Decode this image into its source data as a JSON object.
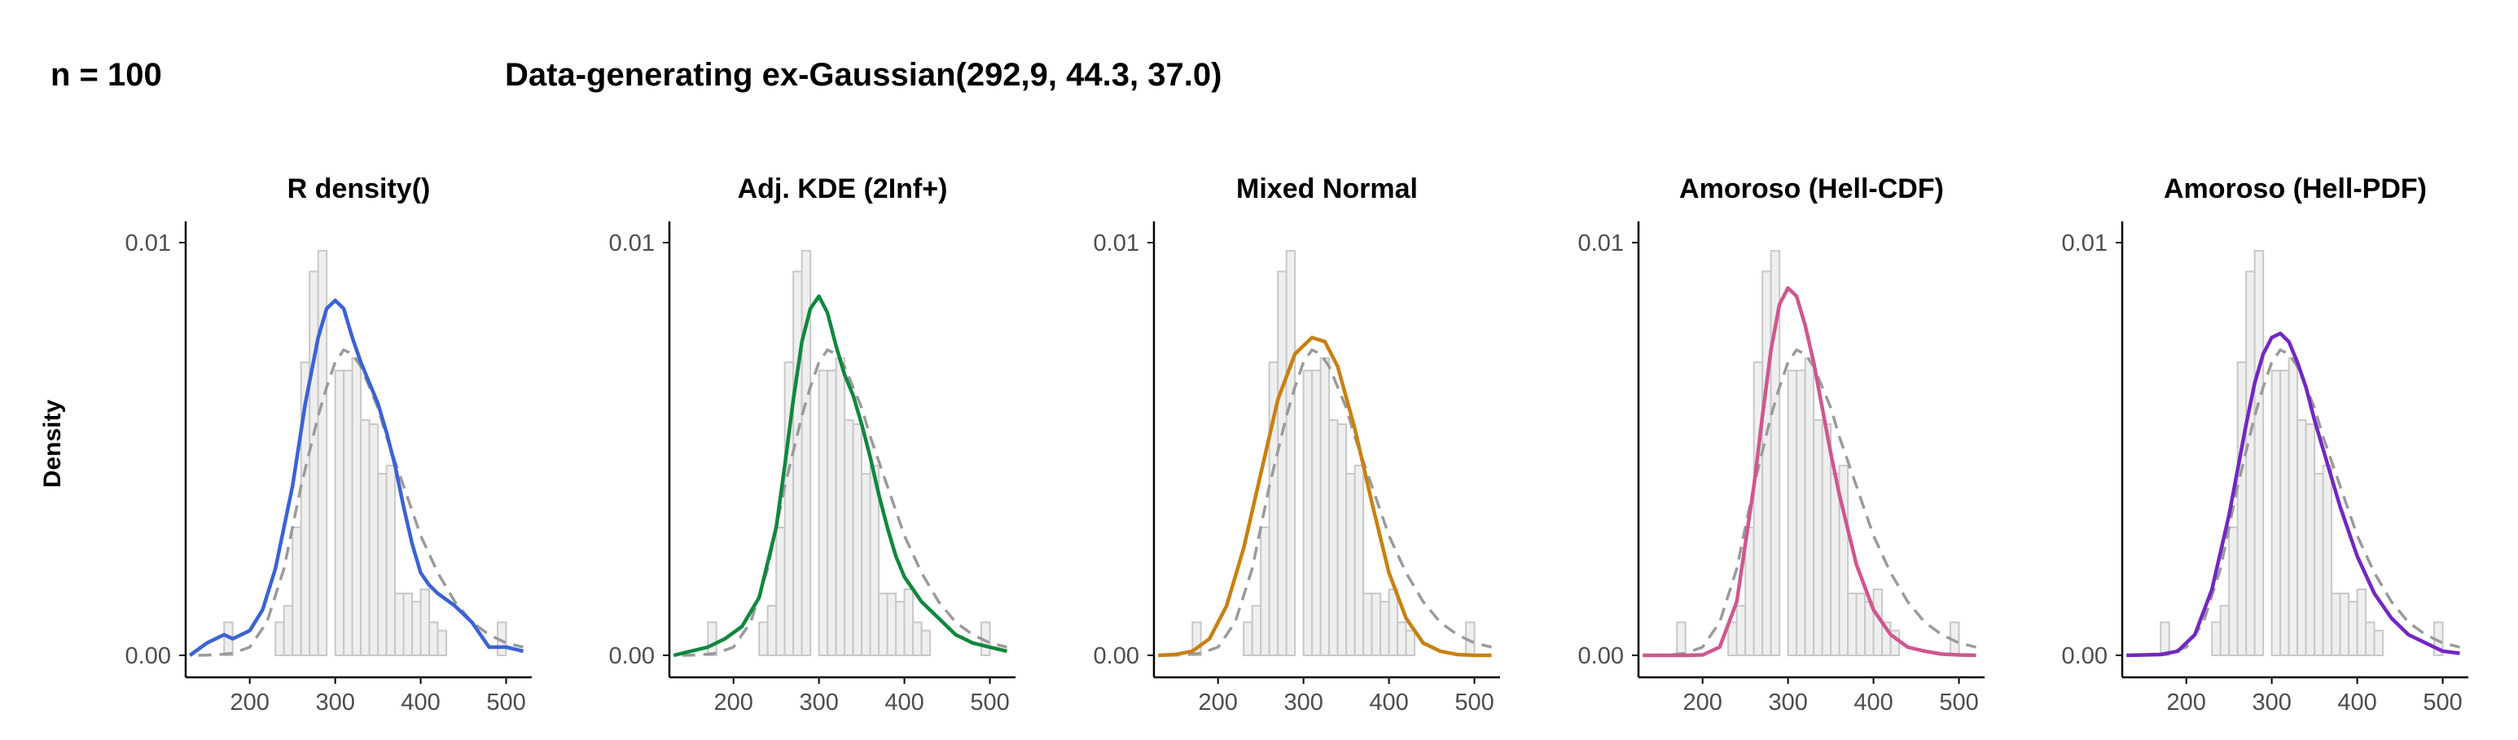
{
  "header": {
    "n_label": "n = 100",
    "title": "Data-generating ex-Gaussian(292,9, 44.3, 37.0)"
  },
  "ylabel": "Density",
  "colors": {
    "hist_fill": "#efefef",
    "hist_stroke": "#c8c8c8",
    "reference_dash": "#9a9a9a",
    "axis": "#000000",
    "tick_text": "#4d4d4d"
  },
  "chart_data": {
    "type": "histogram-with-density",
    "x_ticks": [
      200,
      300,
      400,
      500
    ],
    "x_tick_labels": [
      "200",
      "300",
      "400",
      "500"
    ],
    "y_ticks": [
      0,
      0.01
    ],
    "y_tick_labels": [
      "0.00",
      "0.01"
    ],
    "xlim": [
      125,
      530
    ],
    "ylim": [
      -0.0005,
      0.0105
    ],
    "histogram": {
      "bin_width": 10,
      "bins_start": [
        170,
        180,
        190,
        200,
        210,
        220,
        230,
        240,
        250,
        260,
        270,
        280,
        290,
        300,
        310,
        320,
        330,
        340,
        350,
        360,
        370,
        380,
        390,
        400,
        410,
        420,
        430,
        440,
        450,
        460,
        470,
        480,
        490,
        500,
        510
      ],
      "density": [
        0.0008,
        0,
        0,
        0,
        0,
        0,
        0.0008,
        0.0012,
        0.0031,
        0.0071,
        0.0093,
        0.0098,
        0,
        0.0069,
        0.0069,
        0.0072,
        0.0057,
        0.0056,
        0.0044,
        0.0046,
        0.0015,
        0.0015,
        0.0013,
        0.0016,
        0.0008,
        0.0006,
        0,
        0,
        0,
        0,
        0,
        0,
        0.0008,
        0,
        0
      ]
    },
    "reference": {
      "name": "",
      "x": [
        140,
        160,
        180,
        200,
        220,
        240,
        260,
        280,
        290,
        300,
        310,
        320,
        330,
        340,
        350,
        360,
        380,
        400,
        420,
        440,
        460,
        480,
        500,
        520
      ],
      "y": [
        0,
        1e-05,
        5e-05,
        0.0002,
        0.0008,
        0.0021,
        0.0041,
        0.0058,
        0.0065,
        0.0071,
        0.0074,
        0.0073,
        0.007,
        0.0065,
        0.006,
        0.0053,
        0.0041,
        0.0029,
        0.002,
        0.0013,
        0.0008,
        0.0005,
        0.0003,
        0.0002
      ]
    },
    "panels": [
      {
        "title": "R density()",
        "color": "#3b62d6",
        "x": [
          130,
          150,
          170,
          180,
          200,
          215,
          230,
          250,
          265,
          280,
          290,
          300,
          310,
          320,
          330,
          340,
          350,
          360,
          370,
          380,
          390,
          400,
          410,
          420,
          440,
          460,
          480,
          500,
          520
        ],
        "y": [
          0,
          0.0003,
          0.0005,
          0.0004,
          0.0006,
          0.0011,
          0.0021,
          0.0041,
          0.0061,
          0.0077,
          0.0084,
          0.0086,
          0.0084,
          0.0077,
          0.0071,
          0.0066,
          0.0061,
          0.0054,
          0.0046,
          0.0036,
          0.0027,
          0.002,
          0.0017,
          0.0015,
          0.0012,
          0.0008,
          0.0002,
          0.0002,
          0.0001
        ]
      },
      {
        "title": "Adj. KDE (2Inf+)",
        "color": "#11873e",
        "x": [
          130,
          150,
          170,
          190,
          210,
          230,
          250,
          260,
          270,
          280,
          290,
          300,
          310,
          320,
          330,
          340,
          350,
          360,
          370,
          380,
          390,
          400,
          420,
          440,
          460,
          480,
          500,
          520
        ],
        "y": [
          0,
          0.0001,
          0.0002,
          0.0004,
          0.0007,
          0.0014,
          0.0031,
          0.0046,
          0.0062,
          0.0076,
          0.0084,
          0.0087,
          0.0083,
          0.0075,
          0.0068,
          0.0063,
          0.0056,
          0.0048,
          0.0039,
          0.0031,
          0.0024,
          0.0019,
          0.0013,
          0.0009,
          0.0005,
          0.0003,
          0.0002,
          0.0001
        ]
      },
      {
        "title": "Mixed Normal",
        "color": "#c88012",
        "x": [
          130,
          150,
          170,
          190,
          210,
          230,
          250,
          270,
          290,
          310,
          325,
          340,
          360,
          380,
          400,
          420,
          440,
          460,
          480,
          500,
          520
        ],
        "y": [
          0,
          2e-05,
          0.0001,
          0.0004,
          0.0012,
          0.0026,
          0.0044,
          0.0062,
          0.0073,
          0.0077,
          0.0076,
          0.007,
          0.0055,
          0.0037,
          0.002,
          0.0009,
          0.0003,
          0.0001,
          2e-05,
          0,
          0
        ]
      },
      {
        "title": "Amoroso (Hell-CDF)",
        "color": "#d0568e",
        "x": [
          130,
          180,
          200,
          220,
          240,
          260,
          270,
          280,
          290,
          300,
          310,
          320,
          330,
          340,
          350,
          360,
          380,
          400,
          420,
          440,
          460,
          480,
          500,
          520
        ],
        "y": [
          0,
          0,
          1e-05,
          0.0002,
          0.0013,
          0.0041,
          0.0058,
          0.0074,
          0.0085,
          0.0089,
          0.0087,
          0.008,
          0.0071,
          0.006,
          0.0049,
          0.0039,
          0.0022,
          0.0011,
          0.0005,
          0.0002,
          0.0001,
          3e-05,
          1e-05,
          0
        ]
      },
      {
        "title": "Amoroso (Hell-PDF)",
        "color": "#7227c2",
        "x": [
          130,
          170,
          190,
          210,
          230,
          250,
          260,
          270,
          280,
          290,
          300,
          310,
          320,
          330,
          340,
          350,
          360,
          380,
          400,
          420,
          440,
          460,
          480,
          500,
          520
        ],
        "y": [
          0,
          2e-05,
          0.0001,
          0.0005,
          0.0016,
          0.0034,
          0.0045,
          0.0056,
          0.0066,
          0.0073,
          0.0077,
          0.0078,
          0.0076,
          0.0071,
          0.0065,
          0.0057,
          0.005,
          0.0036,
          0.0024,
          0.0015,
          0.0009,
          0.0005,
          0.0003,
          0.0001,
          5e-05
        ]
      }
    ]
  }
}
